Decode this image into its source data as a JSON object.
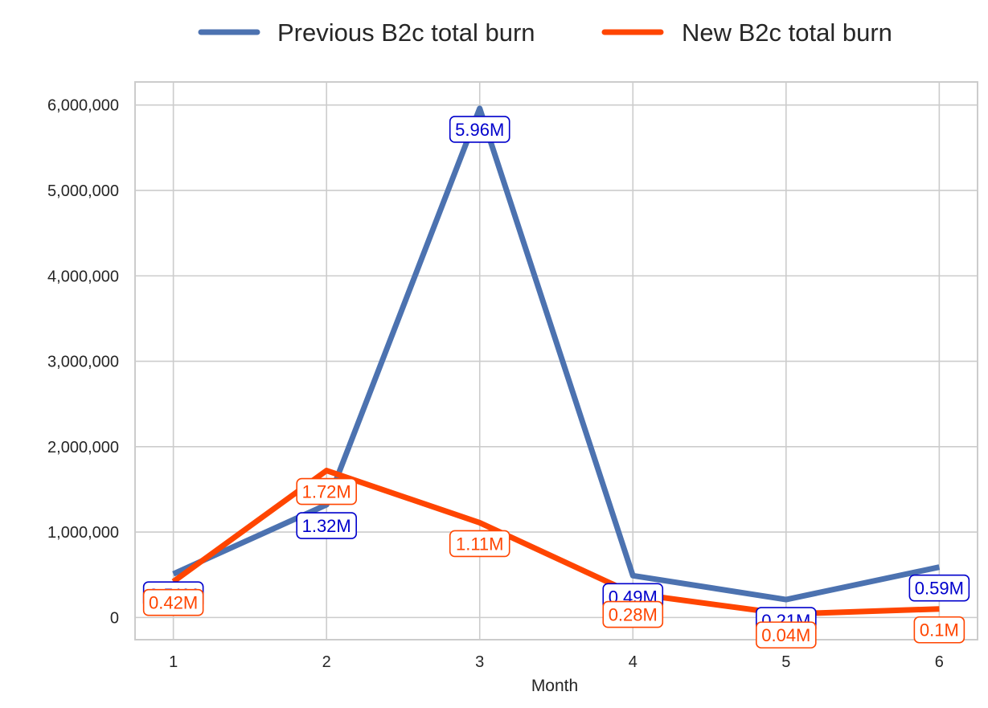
{
  "chart_data": {
    "type": "line",
    "title": "",
    "xlabel": "Month",
    "ylabel": "",
    "x": [
      1,
      2,
      3,
      4,
      5,
      6
    ],
    "x_tick_labels": [
      "1",
      "2",
      "3",
      "4",
      "5",
      "6"
    ],
    "y_ticks": [
      0,
      1000000,
      2000000,
      3000000,
      4000000,
      5000000,
      6000000
    ],
    "y_tick_labels": [
      "0",
      "1,000,000",
      "2,000,000",
      "3,000,000",
      "4,000,000",
      "5,000,000",
      "6,000,000"
    ],
    "xlim": [
      0.75,
      6.25
    ],
    "ylim": [
      -260000,
      6270000
    ],
    "grid": true,
    "legend_position": "top-center",
    "series": [
      {
        "name": "Previous B2c total burn",
        "color": "#4c72b0",
        "label_color": "#0000cc",
        "label_position": "below",
        "values": [
          510000,
          1320000,
          5960000,
          490000,
          210000,
          590000
        ],
        "labels": [
          "0.51M",
          "1.32M",
          "5.96M",
          "0.49M",
          "0.21M",
          "0.59M"
        ]
      },
      {
        "name": "New B2c total burn",
        "color": "#ff4500",
        "label_color": "#ff4500",
        "label_position": "below",
        "values": [
          420000,
          1720000,
          1110000,
          280000,
          40000,
          100000
        ],
        "labels": [
          "0.42M",
          "1.72M",
          "1.11M",
          "0.28M",
          "0.04M",
          "0.1M"
        ]
      }
    ]
  }
}
